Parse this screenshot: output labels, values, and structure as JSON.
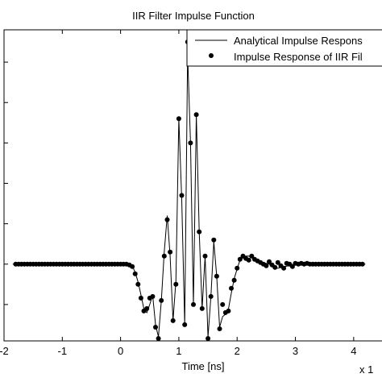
{
  "chart_data": {
    "type": "line",
    "title": "IIR Filter Impulse Function",
    "xlabel": "Time [ns]",
    "xlim": [
      -2,
      4.5
    ],
    "ylim": [
      -0.95,
      2.9
    ],
    "x_ticks": [
      "-2",
      "-1",
      "0",
      "1",
      "2",
      "3",
      "4"
    ],
    "x_tick_values": [
      -2,
      -1,
      0,
      1,
      2,
      3,
      4
    ],
    "y_tick_values": [
      -0.5,
      0,
      0.5,
      1,
      1.5,
      2,
      2.5
    ],
    "exponent_label": "x 1",
    "legend": {
      "placement": "top-right",
      "entries": [
        "Analytical Impulse Respons",
        "Impulse Response of IIR Fil"
      ]
    },
    "series": [
      {
        "name": "Analytical Impulse Respons",
        "style": "line",
        "x": [
          -1.85,
          0.1,
          0.2,
          0.25,
          0.3,
          0.35,
          0.4,
          0.45,
          0.5,
          0.55,
          0.6,
          0.65,
          0.7,
          0.75,
          0.8,
          0.85,
          0.9,
          0.95,
          1.0,
          1.05,
          1.1,
          1.15,
          1.2,
          1.25,
          1.3,
          1.35,
          1.4,
          1.45,
          1.5,
          1.55,
          1.6,
          1.65,
          1.7,
          1.75,
          1.8,
          1.85,
          1.9,
          1.95,
          2.0,
          2.05,
          2.1,
          2.15,
          2.2,
          2.25,
          2.3,
          2.35,
          2.4,
          2.45,
          2.5,
          2.55,
          2.6,
          2.7,
          2.8,
          2.9,
          3.0,
          3.2,
          3.4,
          3.6,
          4.2
        ],
        "y": [
          0,
          0,
          -0.02,
          -0.1,
          -0.22,
          -0.38,
          -0.55,
          -0.6,
          -0.5,
          -0.38,
          -0.75,
          -0.9,
          -0.45,
          0.15,
          0.6,
          0.1,
          -0.7,
          -0.2,
          1.8,
          0.8,
          -0.75,
          2.6,
          1.5,
          -0.5,
          1.85,
          0.4,
          -0.55,
          0.1,
          -0.9,
          -0.4,
          0.28,
          -0.15,
          -0.78,
          -0.65,
          -0.62,
          -0.56,
          -0.36,
          -0.18,
          -0.06,
          0.05,
          0.08,
          0.1,
          0.1,
          0.08,
          0.05,
          0.03,
          0.02,
          0.015,
          0.01,
          0.0,
          -0.03,
          -0.05,
          -0.03,
          -0.02,
          0.01,
          0.005,
          0,
          0,
          0
        ]
      },
      {
        "name": "Impulse Response of IIR Fil",
        "style": "markers",
        "x": [
          -1.8,
          -1.75,
          -1.7,
          -1.65,
          -1.6,
          -1.55,
          -1.5,
          -1.45,
          -1.4,
          -1.35,
          -1.3,
          -1.25,
          -1.2,
          -1.15,
          -1.1,
          -1.05,
          -1.0,
          -0.95,
          -0.9,
          -0.85,
          -0.8,
          -0.75,
          -0.7,
          -0.65,
          -0.6,
          -0.55,
          -0.5,
          -0.45,
          -0.4,
          -0.35,
          -0.3,
          -0.25,
          -0.2,
          -0.15,
          -0.1,
          -0.05,
          0.0,
          0.05,
          0.1,
          0.15,
          0.2,
          0.25,
          0.3,
          0.35,
          0.4,
          0.45,
          0.5,
          0.55,
          0.6,
          0.65,
          0.7,
          0.75,
          0.8,
          0.85,
          0.9,
          0.95,
          1.0,
          1.05,
          1.1,
          1.15,
          1.2,
          1.25,
          1.3,
          1.35,
          1.4,
          1.45,
          1.5,
          1.55,
          1.6,
          1.65,
          1.7,
          1.75,
          1.8,
          1.85,
          1.9,
          1.95,
          2.0,
          2.05,
          2.1,
          2.15,
          2.2,
          2.25,
          2.3,
          2.35,
          2.4,
          2.45,
          2.5,
          2.55,
          2.6,
          2.65,
          2.7,
          2.75,
          2.8,
          2.85,
          2.9,
          2.95,
          3.0,
          3.05,
          3.1,
          3.15,
          3.2,
          3.25,
          3.3,
          3.35,
          3.4,
          3.45,
          3.5,
          3.55,
          3.6,
          3.65,
          3.7,
          3.75,
          3.8,
          3.85,
          3.9,
          3.95,
          4.0,
          4.05,
          4.1,
          4.15
        ],
        "y": [
          0,
          0,
          0,
          0,
          0,
          0,
          0,
          0,
          0,
          0,
          0,
          0,
          0,
          0,
          0,
          0,
          0,
          0,
          0,
          0,
          0,
          0,
          0,
          0,
          0,
          0,
          0,
          0,
          0,
          0,
          0,
          0,
          0,
          0,
          0,
          0,
          0,
          0,
          0,
          -0.01,
          -0.03,
          -0.12,
          -0.25,
          -0.42,
          -0.58,
          -0.55,
          -0.42,
          -0.4,
          -0.78,
          -0.92,
          -0.45,
          0.1,
          0.55,
          0.15,
          -0.7,
          -0.25,
          1.8,
          0.85,
          -0.75,
          2.75,
          1.5,
          -0.5,
          1.85,
          0.4,
          -0.55,
          0.1,
          -0.92,
          -0.4,
          0.3,
          -0.15,
          -0.8,
          -0.5,
          -0.6,
          -0.58,
          -0.3,
          -0.2,
          -0.05,
          0.06,
          0.1,
          0.07,
          0.05,
          0.1,
          0.06,
          0.04,
          0.02,
          0.0,
          -0.02,
          0.03,
          -0.01,
          -0.04,
          0.02,
          -0.02,
          -0.05,
          0.01,
          0.0,
          -0.03,
          0.01,
          0.0,
          0.01,
          0.0,
          0.01,
          0.0,
          0.0,
          0,
          0,
          0,
          0,
          0,
          0,
          0,
          0,
          0,
          0,
          0,
          0,
          0,
          0,
          0,
          0,
          0
        ]
      }
    ]
  }
}
